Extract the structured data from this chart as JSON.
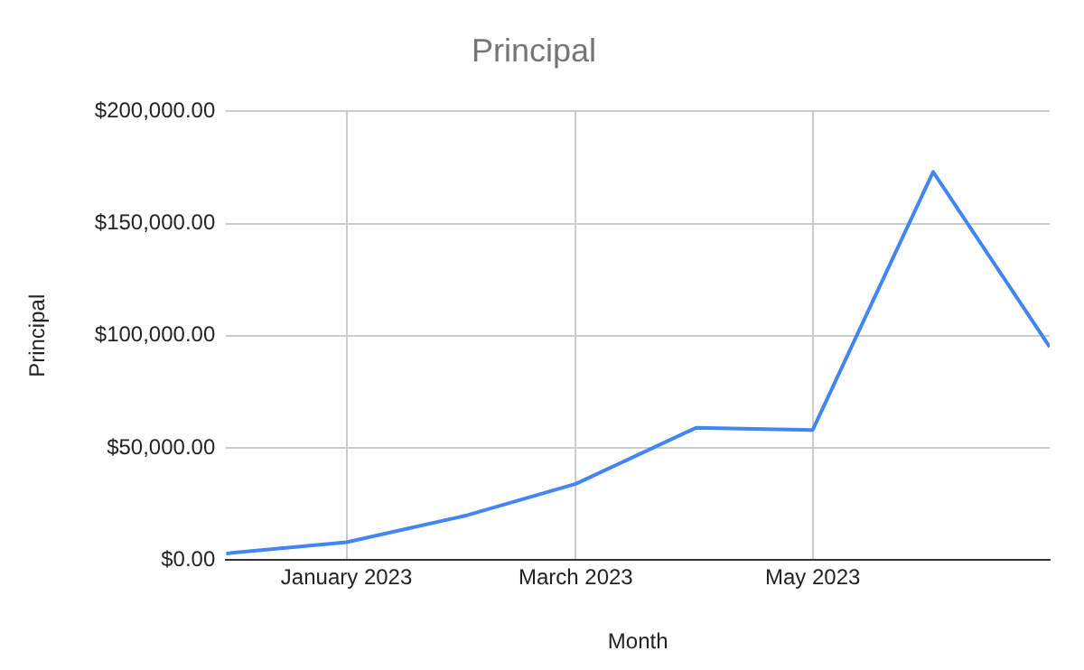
{
  "chart_data": {
    "type": "line",
    "title": "Principal",
    "xlabel": "Month",
    "ylabel": "Principal",
    "x": [
      "2022-12",
      "2023-01",
      "2023-02",
      "2023-03",
      "2023-04",
      "2023-05",
      "2023-06",
      "2023-07"
    ],
    "series": [
      {
        "color": "#4285f4",
        "values": [
          3000,
          8000,
          20000,
          34000,
          59000,
          58000,
          173000,
          95000
        ]
      }
    ],
    "xlim": [
      "2022-12",
      "2023-07"
    ],
    "xticks": [
      {
        "value": "2023-01",
        "label": "January 2023"
      },
      {
        "value": "2023-03",
        "label": "March 2023"
      },
      {
        "value": "2023-05",
        "label": "May 2023"
      }
    ],
    "ylim": [
      0,
      200000
    ],
    "yticks": [
      {
        "value": 0,
        "label": "$0.00"
      },
      {
        "value": 50000,
        "label": "$50,000.00"
      },
      {
        "value": 100000,
        "label": "$100,000.00"
      },
      {
        "value": 150000,
        "label": "$150,000.00"
      },
      {
        "value": 200000,
        "label": "$200,000.00"
      }
    ],
    "grid": true,
    "legend": false,
    "marker": "none",
    "line_style": "solid"
  }
}
